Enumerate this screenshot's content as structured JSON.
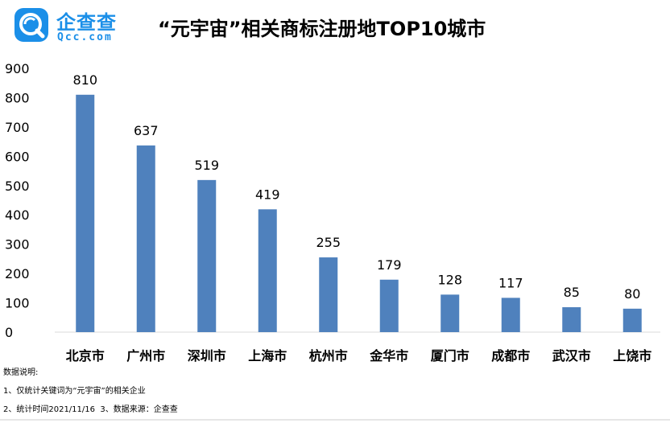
{
  "brand": {
    "name_cn": "企查查",
    "name_en": "Qcc.com",
    "color": "#1b8fe8"
  },
  "chart_data": {
    "type": "bar",
    "title": "“元宇宙”相关商标注册地TOP10城市",
    "categories": [
      "北京市",
      "广州市",
      "深圳市",
      "上海市",
      "杭州市",
      "金华市",
      "厦门市",
      "成都市",
      "武汉市",
      "上饶市"
    ],
    "values": [
      810,
      637,
      519,
      419,
      255,
      179,
      128,
      117,
      85,
      80
    ],
    "ylim": [
      0,
      900
    ],
    "yticks": [
      0,
      100,
      200,
      300,
      400,
      500,
      600,
      700,
      800,
      900
    ],
    "bar_color": "#4f81bd",
    "data_labels": true,
    "grid": false,
    "legend": "none"
  },
  "notes": {
    "heading": "数据说明:",
    "line1": "1、仅统计关键词为“元宇宙”的相关企业",
    "line2": "2、统计时间2021/11/16  3、数据来源：企查查"
  }
}
